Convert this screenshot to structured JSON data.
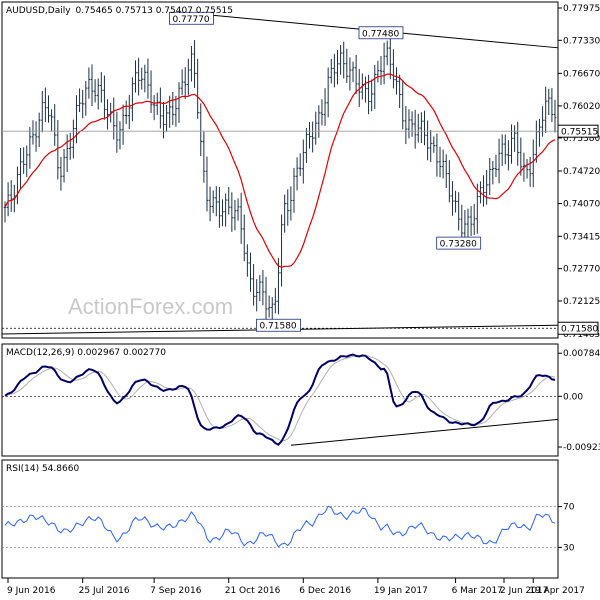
{
  "chart_data": [
    {
      "type": "bar",
      "panel": "price",
      "title": "AUDUSD,Daily",
      "ohlc_text": "0.75465 0.75713 0.75407 0.75515",
      "ylim": [
        0.71465,
        0.77975
      ],
      "y_ticks": [
        "0.77975",
        "0.77330",
        "0.76670",
        "0.76020",
        "0.75380",
        "0.74720",
        "0.74070",
        "0.73415",
        "0.72770",
        "0.72125",
        "0.71465"
      ],
      "x_tick_labels": [
        "9 Jun 2016",
        "25 Jul 2016",
        "7 Sep 2016",
        "21 Oct 2016",
        "6 Dec 2016",
        "19 Jan 2017",
        "6 Mar 2017",
        "19 Apr 2017",
        "2 Jun 2017"
      ],
      "current_price": "0.75515",
      "current_price_value": 0.75515,
      "support_level": "0.71580",
      "support_value": 0.7158,
      "annotations": [
        {
          "text": "0.77770",
          "value": 0.7777,
          "bar": 60
        },
        {
          "text": "0.77480",
          "value": 0.7748,
          "bar": 121
        },
        {
          "text": "0.73280",
          "value": 0.7328,
          "bar": 146
        },
        {
          "text": "0.71580",
          "value": 0.7158,
          "bar": 88
        }
      ],
      "ma_color": "#e00000",
      "candle_color": "#1a2f4a",
      "anchors": [
        [
          0,
          0.739
        ],
        [
          8,
          0.753
        ],
        [
          14,
          0.76
        ],
        [
          18,
          0.748
        ],
        [
          27,
          0.765
        ],
        [
          36,
          0.756
        ],
        [
          44,
          0.766
        ],
        [
          52,
          0.757
        ],
        [
          60,
          0.769
        ],
        [
          65,
          0.742
        ],
        [
          75,
          0.738
        ],
        [
          80,
          0.724
        ],
        [
          86,
          0.719
        ],
        [
          90,
          0.74
        ],
        [
          100,
          0.757
        ],
        [
          108,
          0.77
        ],
        [
          116,
          0.762
        ],
        [
          122,
          0.77
        ],
        [
          130,
          0.757
        ],
        [
          139,
          0.751
        ],
        [
          147,
          0.736
        ],
        [
          155,
          0.744
        ],
        [
          160,
          0.752
        ],
        [
          164,
          0.753
        ],
        [
          167,
          0.746
        ],
        [
          174,
          0.76
        ],
        [
          177,
          0.758
        ]
      ]
    },
    {
      "type": "line",
      "panel": "macd",
      "title": "MACD(12,26,9) 0.002967 0.002770",
      "ylim": [
        -0.0105,
        0.0088
      ],
      "y_ticks": [
        "0.007848",
        "0.00",
        "-0.00923"
      ],
      "series": [
        {
          "name": "MACD",
          "color": "#000066"
        },
        {
          "name": "Signal",
          "color": "#b0b0b0"
        }
      ],
      "anchors": [
        [
          0,
          0.0
        ],
        [
          8,
          0.004
        ],
        [
          14,
          0.0055
        ],
        [
          20,
          0.0025
        ],
        [
          28,
          0.005
        ],
        [
          36,
          -0.001
        ],
        [
          44,
          0.003
        ],
        [
          52,
          0.001
        ],
        [
          58,
          0.002
        ],
        [
          64,
          -0.006
        ],
        [
          70,
          -0.0055
        ],
        [
          76,
          -0.0035
        ],
        [
          82,
          -0.007
        ],
        [
          88,
          -0.0085
        ],
        [
          96,
          0.0
        ],
        [
          103,
          0.006
        ],
        [
          110,
          0.0075
        ],
        [
          116,
          0.0072
        ],
        [
          122,
          0.005
        ],
        [
          126,
          -0.002
        ],
        [
          132,
          0.001
        ],
        [
          138,
          -0.003
        ],
        [
          145,
          -0.005
        ],
        [
          152,
          -0.005
        ],
        [
          158,
          -0.001
        ],
        [
          166,
          0.0
        ],
        [
          172,
          0.004
        ],
        [
          177,
          0.003
        ]
      ],
      "trendline": [
        [
          92,
          -0.0089
        ],
        [
          177,
          -0.0042
        ]
      ]
    },
    {
      "type": "line",
      "panel": "rsi",
      "title": "RSI(14) 54.8660",
      "ylim": [
        0,
        100
      ],
      "y_ticks": [
        "70",
        "30"
      ],
      "levels": [
        70,
        30
      ],
      "series": [
        {
          "name": "RSI",
          "color": "#2962ff"
        }
      ],
      "anchors": [
        [
          0,
          50
        ],
        [
          8,
          60
        ],
        [
          14,
          55
        ],
        [
          20,
          45
        ],
        [
          28,
          60
        ],
        [
          36,
          40
        ],
        [
          44,
          58
        ],
        [
          52,
          48
        ],
        [
          60,
          62
        ],
        [
          66,
          38
        ],
        [
          72,
          45
        ],
        [
          78,
          35
        ],
        [
          84,
          42
        ],
        [
          90,
          33
        ],
        [
          98,
          55
        ],
        [
          104,
          66
        ],
        [
          110,
          62
        ],
        [
          116,
          65
        ],
        [
          122,
          50
        ],
        [
          126,
          42
        ],
        [
          132,
          52
        ],
        [
          138,
          42
        ],
        [
          145,
          38
        ],
        [
          150,
          44
        ],
        [
          156,
          32
        ],
        [
          162,
          52
        ],
        [
          168,
          48
        ],
        [
          172,
          64
        ],
        [
          177,
          54
        ]
      ]
    }
  ],
  "watermark": "ActionForex.com"
}
